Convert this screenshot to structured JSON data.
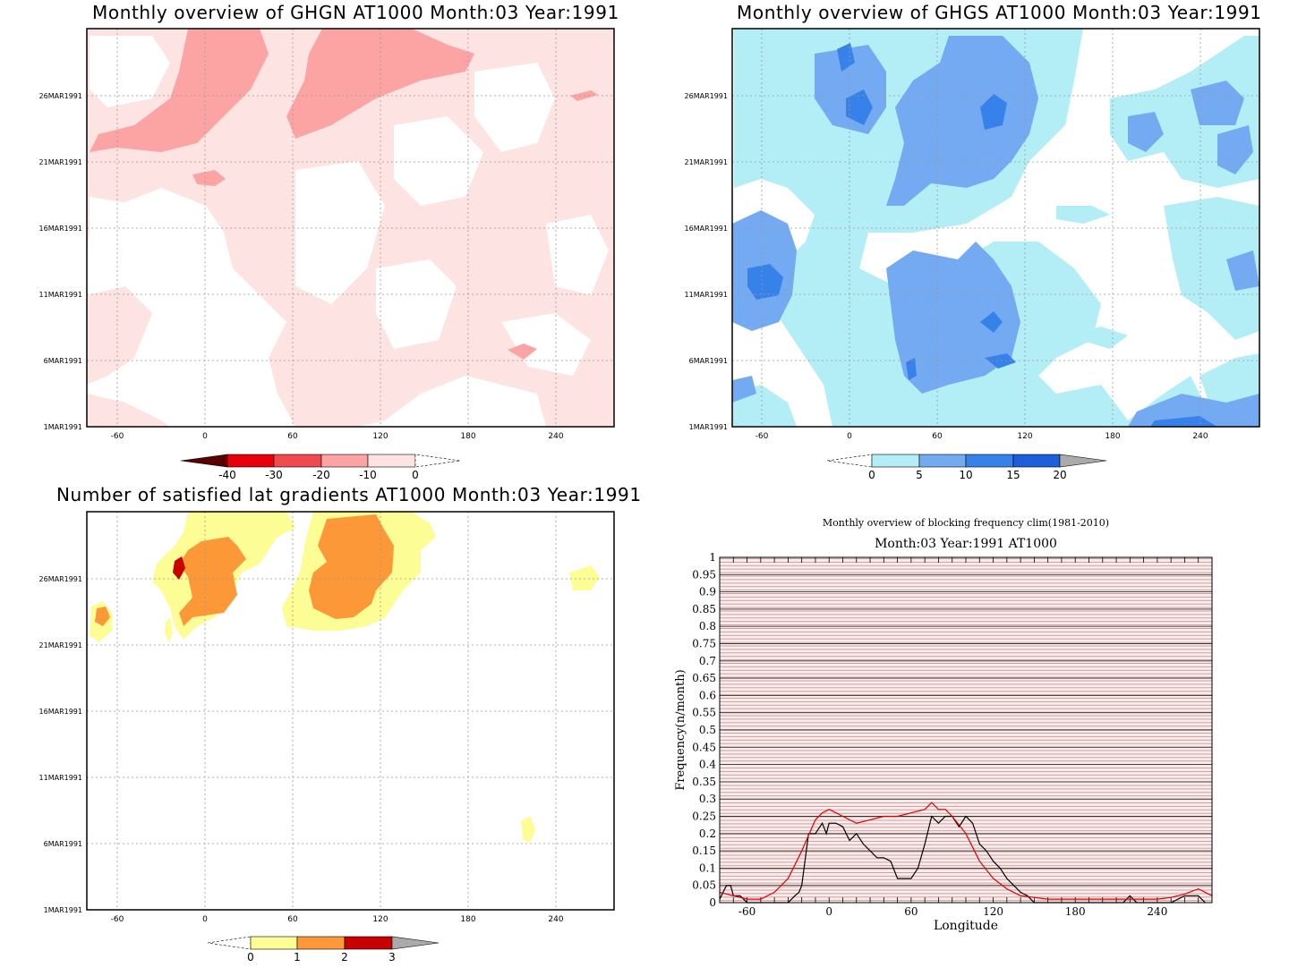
{
  "panels": {
    "ghgn": {
      "title": "Monthly overview of GHGN AT1000 Month:03 Year:1991",
      "x_ticks": [
        "-60",
        "0",
        "60",
        "120",
        "180",
        "240"
      ],
      "y_ticks": [
        "1MAR1991",
        "6MAR1991",
        "11MAR1991",
        "16MAR1991",
        "21MAR1991",
        "26MAR1991"
      ],
      "colorbar": {
        "ticks": [
          "-40",
          "-30",
          "-20",
          "-10",
          "0"
        ],
        "colors": [
          "#5a0000",
          "#e8000a",
          "#f0494f",
          "#fca3a3",
          "#fee3e3"
        ]
      }
    },
    "ghgs": {
      "title": "Monthly overview of GHGS AT1000 Month:03 Year:1991",
      "x_ticks": [
        "-60",
        "0",
        "60",
        "120",
        "180",
        "240"
      ],
      "y_ticks": [
        "1MAR1991",
        "6MAR1991",
        "11MAR1991",
        "16MAR1991",
        "21MAR1991",
        "26MAR1991"
      ],
      "colorbar": {
        "ticks": [
          "0",
          "5",
          "10",
          "15",
          "20"
        ],
        "colors": [
          "#b3eef7",
          "#74aaf2",
          "#3782ea",
          "#1c5fd8",
          "#aaaaaa"
        ]
      }
    },
    "gradients": {
      "title": "Number of satisfied lat gradients AT1000 Month:03 Year:1991",
      "x_ticks": [
        "-60",
        "0",
        "60",
        "120",
        "180",
        "240"
      ],
      "y_ticks": [
        "1MAR1991",
        "6MAR1991",
        "11MAR1991",
        "16MAR1991",
        "21MAR1991",
        "26MAR1991"
      ],
      "colorbar": {
        "ticks": [
          "0",
          "1",
          "2",
          "3"
        ],
        "colors": [
          "#fdfd96",
          "#fc9838",
          "#c80000",
          "#aaaaaa"
        ]
      }
    },
    "frequency": {
      "title": "Monthly overview of blocking frequency clim(1981-2010)",
      "subtitle": "Month:03 Year:1991  AT1000",
      "xlabel": "Longitude",
      "ylabel": "Frequency(n/month)"
    }
  },
  "chart_data": [
    {
      "type": "heatmap",
      "title": "Monthly overview of GHGN AT1000 Month:03 Year:1991",
      "x_range": [
        -80,
        280
      ],
      "y_range": [
        "1MAR1991",
        "31MAR1991"
      ],
      "levels": [
        -40,
        -30,
        -20,
        -10,
        0
      ],
      "fill_colors": {
        "0to-10": "#fee3e3",
        "-10to-20": "#fca3a3"
      }
    },
    {
      "type": "heatmap",
      "title": "Monthly overview of GHGS AT1000 Month:03 Year:1991",
      "x_range": [
        -80,
        280
      ],
      "y_range": [
        "1MAR1991",
        "31MAR1991"
      ],
      "levels": [
        0,
        5,
        10,
        15,
        20
      ],
      "fill_colors": {
        "0to5": "#b3eef7",
        "5to10": "#74aaf2",
        "10to15": "#3782ea",
        "15to20": "#1c5fd8"
      }
    },
    {
      "type": "heatmap",
      "title": "Number of satisfied lat gradients AT1000 Month:03 Year:1991",
      "x_range": [
        -80,
        280
      ],
      "y_range": [
        "1MAR1991",
        "31MAR1991"
      ],
      "levels": [
        0,
        1,
        2,
        3
      ],
      "fill_colors": {
        "0to1": "#fdfd96",
        "1to2": "#fc9838",
        "2to3": "#c80000"
      }
    },
    {
      "type": "line",
      "title": "Monthly overview of blocking frequency clim(1981-2010)",
      "subtitle": "Month:03 Year:1991  AT1000",
      "xlabel": "Longitude",
      "ylabel": "Frequency(n/month)",
      "xlim": [
        -80,
        280
      ],
      "ylim": [
        0,
        1
      ],
      "x_ticks": [
        -60,
        0,
        60,
        120,
        180,
        240
      ],
      "y_ticks": [
        0,
        0.05,
        0.1,
        0.15,
        0.2,
        0.25,
        0.3,
        0.35,
        0.4,
        0.45,
        0.5,
        0.55,
        0.6,
        0.65,
        0.7,
        0.75,
        0.8,
        0.85,
        0.9,
        0.95,
        1
      ],
      "series": [
        {
          "color": "#000000",
          "x": [
            -80,
            -75,
            -72,
            -70,
            -65,
            -60,
            -55,
            -50,
            -45,
            -40,
            -35,
            -30,
            -25,
            -22,
            -20,
            -15,
            -12,
            -10,
            -5,
            -2,
            0,
            5,
            10,
            15,
            20,
            25,
            30,
            35,
            40,
            45,
            50,
            55,
            60,
            65,
            70,
            75,
            80,
            85,
            90,
            95,
            100,
            105,
            110,
            115,
            120,
            125,
            130,
            135,
            140,
            145,
            150,
            160,
            170,
            180,
            190,
            200,
            210,
            215,
            220,
            225,
            230,
            240,
            250,
            260,
            265,
            270,
            275
          ],
          "y": [
            0.01,
            0.05,
            0.05,
            0.02,
            0.02,
            0.0,
            0.0,
            0.0,
            0.0,
            0.0,
            0.0,
            0.0,
            0.02,
            0.03,
            0.05,
            0.2,
            0.2,
            0.2,
            0.23,
            0.2,
            0.23,
            0.23,
            0.22,
            0.18,
            0.2,
            0.17,
            0.15,
            0.13,
            0.13,
            0.12,
            0.07,
            0.07,
            0.07,
            0.1,
            0.17,
            0.25,
            0.23,
            0.25,
            0.25,
            0.22,
            0.25,
            0.23,
            0.17,
            0.15,
            0.12,
            0.1,
            0.07,
            0.05,
            0.03,
            0.02,
            0.0,
            0.0,
            0.0,
            0.0,
            0.0,
            0.0,
            0.0,
            0.0,
            0.02,
            0.0,
            0.0,
            0.0,
            0.0,
            0.02,
            0.02,
            0.02,
            0.0
          ]
        },
        {
          "color": "#e00000",
          "x": [
            -80,
            -70,
            -60,
            -50,
            -40,
            -30,
            -20,
            -10,
            -5,
            0,
            5,
            10,
            15,
            20,
            30,
            40,
            50,
            60,
            70,
            75,
            80,
            85,
            90,
            100,
            110,
            120,
            130,
            140,
            150,
            160,
            180,
            200,
            220,
            240,
            250,
            260,
            270,
            280
          ],
          "y": [
            0.03,
            0.02,
            0.01,
            0.01,
            0.03,
            0.07,
            0.15,
            0.24,
            0.26,
            0.27,
            0.26,
            0.25,
            0.24,
            0.23,
            0.24,
            0.25,
            0.25,
            0.26,
            0.27,
            0.29,
            0.27,
            0.27,
            0.25,
            0.2,
            0.12,
            0.07,
            0.04,
            0.02,
            0.015,
            0.01,
            0.01,
            0.01,
            0.01,
            0.01,
            0.015,
            0.025,
            0.04,
            0.02
          ]
        }
      ]
    }
  ]
}
